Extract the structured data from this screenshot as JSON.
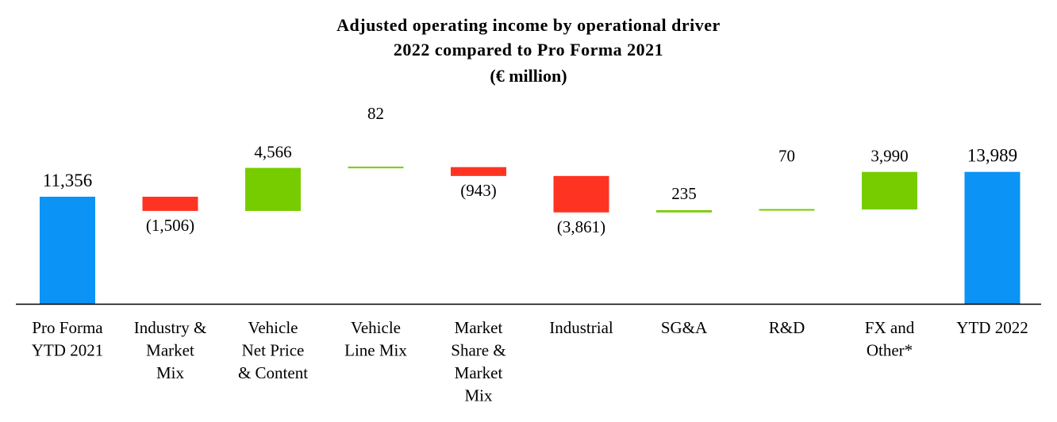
{
  "chart_data": {
    "type": "waterfall",
    "title_lines": [
      "Adjusted operating income by operational driver",
      "2022 compared to Pro Forma 2021",
      "(€ million)"
    ],
    "colors": {
      "total": "#0b93f6",
      "increase": "#77cc00",
      "decrease": "#ff3322"
    },
    "categories": [
      {
        "lines": [
          "Pro Forma",
          "YTD 2021"
        ],
        "kind": "total",
        "value": 11356,
        "label": "11,356"
      },
      {
        "lines": [
          "Industry &",
          "Market",
          "Mix"
        ],
        "kind": "decrease",
        "value": -1506,
        "label": "(1,506)"
      },
      {
        "lines": [
          "Vehicle",
          "Net Price",
          "& Content"
        ],
        "kind": "increase",
        "value": 4566,
        "label": "4,566"
      },
      {
        "lines": [
          "Vehicle",
          "Line Mix"
        ],
        "kind": "increase",
        "value": 82,
        "label": "82"
      },
      {
        "lines": [
          "Market",
          "Share &",
          "Market",
          "Mix"
        ],
        "kind": "decrease",
        "value": -943,
        "label": "(943)"
      },
      {
        "lines": [
          "Industrial"
        ],
        "kind": "decrease",
        "value": -3861,
        "label": "(3,861)"
      },
      {
        "lines": [
          "SG&A"
        ],
        "kind": "increase",
        "value": 235,
        "label": "235"
      },
      {
        "lines": [
          "R&D"
        ],
        "kind": "increase",
        "value": 70,
        "label": "70"
      },
      {
        "lines": [
          "FX and",
          "Other*"
        ],
        "kind": "increase",
        "value": 3990,
        "label": "3,990"
      },
      {
        "lines": [
          "YTD 2022"
        ],
        "kind": "total",
        "value": 13989,
        "label": "13,989"
      }
    ]
  }
}
